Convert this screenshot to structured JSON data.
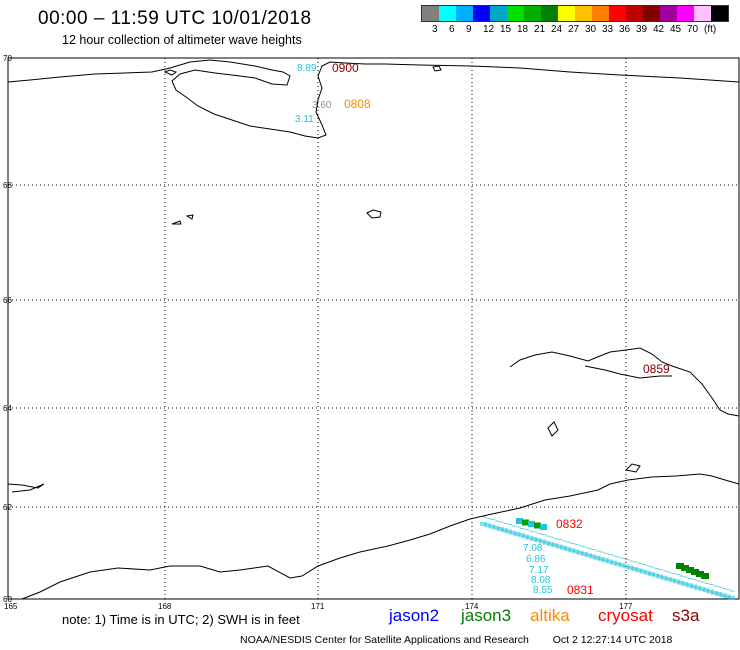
{
  "header": {
    "title": "00:00 – 11:59 UTC 10/01/2018",
    "subtitle": "12 hour collection of altimeter wave heights"
  },
  "legend": {
    "colors": [
      "#808080",
      "#00ffff",
      "#00b0ff",
      "#0000ff",
      "#00a8c8",
      "#00e000",
      "#00b000",
      "#008000",
      "#ffff00",
      "#ffc000",
      "#ff8000",
      "#ff0000",
      "#c00000",
      "#800000",
      "#a000a0",
      "#ff00ff",
      "#ffc0ff",
      "#000000"
    ],
    "labels": [
      "3",
      "6",
      "9",
      "12",
      "15",
      "18",
      "21",
      "24",
      "27",
      "30",
      "33",
      "36",
      "39",
      "42",
      "45",
      "70",
      "(ft)"
    ]
  },
  "map": {
    "lat_labels": [
      "70",
      "68",
      "66",
      "64",
      "62",
      "60"
    ],
    "lon_labels": [
      "165",
      "168",
      "171",
      "174",
      "177"
    ],
    "observations": [
      {
        "text": "8.89",
        "color": "#22c4dc"
      },
      {
        "text": "0900",
        "color": "#8b0000"
      },
      {
        "text": "3.60",
        "color": "#909090"
      },
      {
        "text": "0808",
        "color": "#ff8c00"
      },
      {
        "text": "3.11",
        "color": "#22c4dc"
      },
      {
        "text": "0859",
        "color": "#8b0000"
      },
      {
        "text": "0832",
        "color": "#ff0000"
      },
      {
        "text": "7.08",
        "color": "#22c4dc"
      },
      {
        "text": "6.86",
        "color": "#22c4dc"
      },
      {
        "text": "7.17",
        "color": "#22c4dc"
      },
      {
        "text": "8.08",
        "color": "#22c4dc"
      },
      {
        "text": "8.55",
        "color": "#22c4dc"
      },
      {
        "text": "0831",
        "color": "#ff0000"
      }
    ]
  },
  "footer": {
    "note": "note: 1) Time is in UTC; 2) SWH is in feet",
    "satellites": [
      {
        "name": "jason2",
        "color": "#0000ff"
      },
      {
        "name": "jason3",
        "color": "#008000"
      },
      {
        "name": "altika",
        "color": "#ff8c00"
      },
      {
        "name": "cryosat",
        "color": "#ff0000"
      },
      {
        "name": "s3a",
        "color": "#8b0000"
      }
    ],
    "credit": "NOAA/NESDIS Center for Satellite Applications and Research",
    "timestamp": "Oct  2 12:27:14 UTC 2018"
  }
}
